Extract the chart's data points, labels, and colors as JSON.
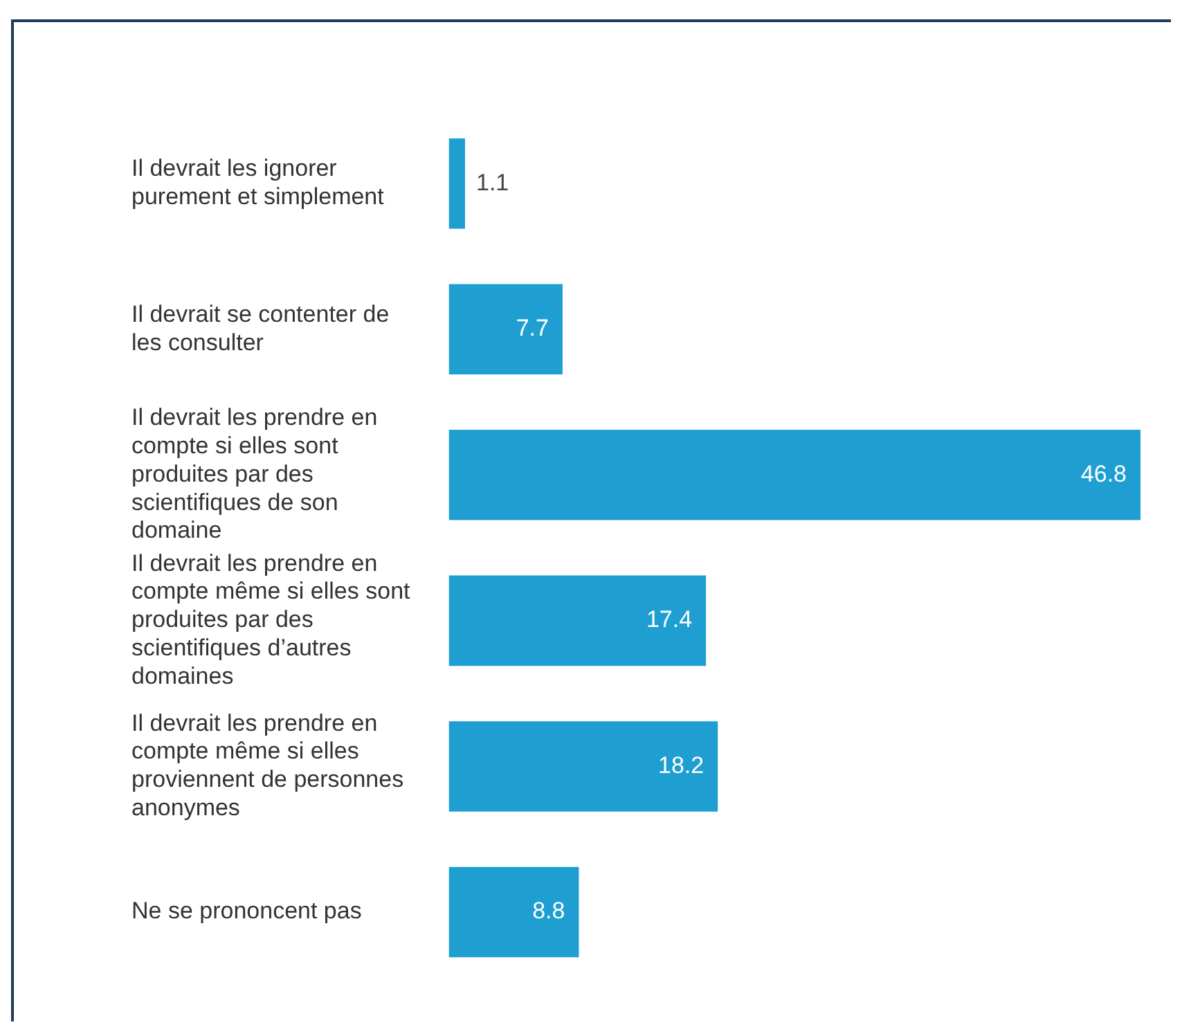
{
  "chart_data": {
    "type": "bar",
    "orientation": "horizontal",
    "data_labels": true,
    "color": "#1f9fd1",
    "categories": [
      "Il devrait les ignorer purement et simplement",
      "Il devrait se contenter de les consulter",
      "Il devrait les prendre en compte si elles sont produites par des scientifiques de son domaine",
      "Il devrait les prendre en compte même si elles sont produites par des scientifiques d’autres domaines",
      "Il devrait les prendre en compte même si elles proviennent de personnes anonymes",
      "Ne se prononcent pas"
    ],
    "values": [
      1.1,
      7.7,
      46.8,
      17.4,
      18.2,
      8.8
    ]
  }
}
